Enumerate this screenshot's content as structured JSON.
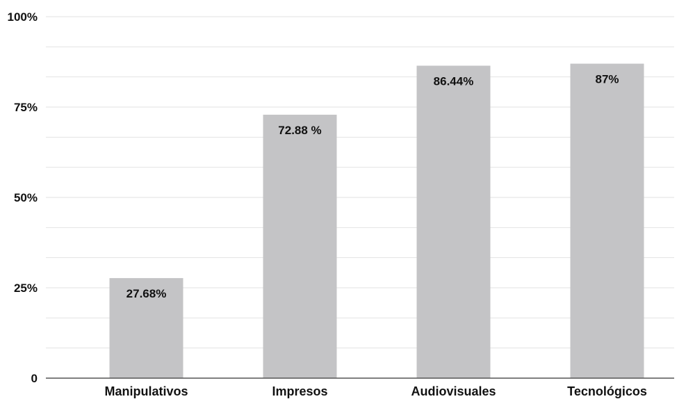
{
  "chart_data": {
    "type": "bar",
    "categories": [
      "Manipulativos",
      "Impresos",
      "Audiovisuales",
      "Tecnológicos"
    ],
    "values": [
      27.68,
      72.88,
      86.44,
      87
    ],
    "data_labels": [
      "27.68%",
      "72.88 %",
      "86.44%",
      "87%"
    ],
    "title": "",
    "xlabel": "",
    "ylabel": "",
    "ylim": [
      0,
      100
    ],
    "yticks": [
      0,
      25,
      50,
      75,
      100
    ],
    "ytick_labels": [
      "0",
      "25%",
      "50%",
      "75%",
      "100%"
    ],
    "grid": true,
    "bar_color": "#c4c4c6",
    "grid_color": "#e2e2e2",
    "axis_color": "#555555",
    "text_color": "#111111"
  }
}
